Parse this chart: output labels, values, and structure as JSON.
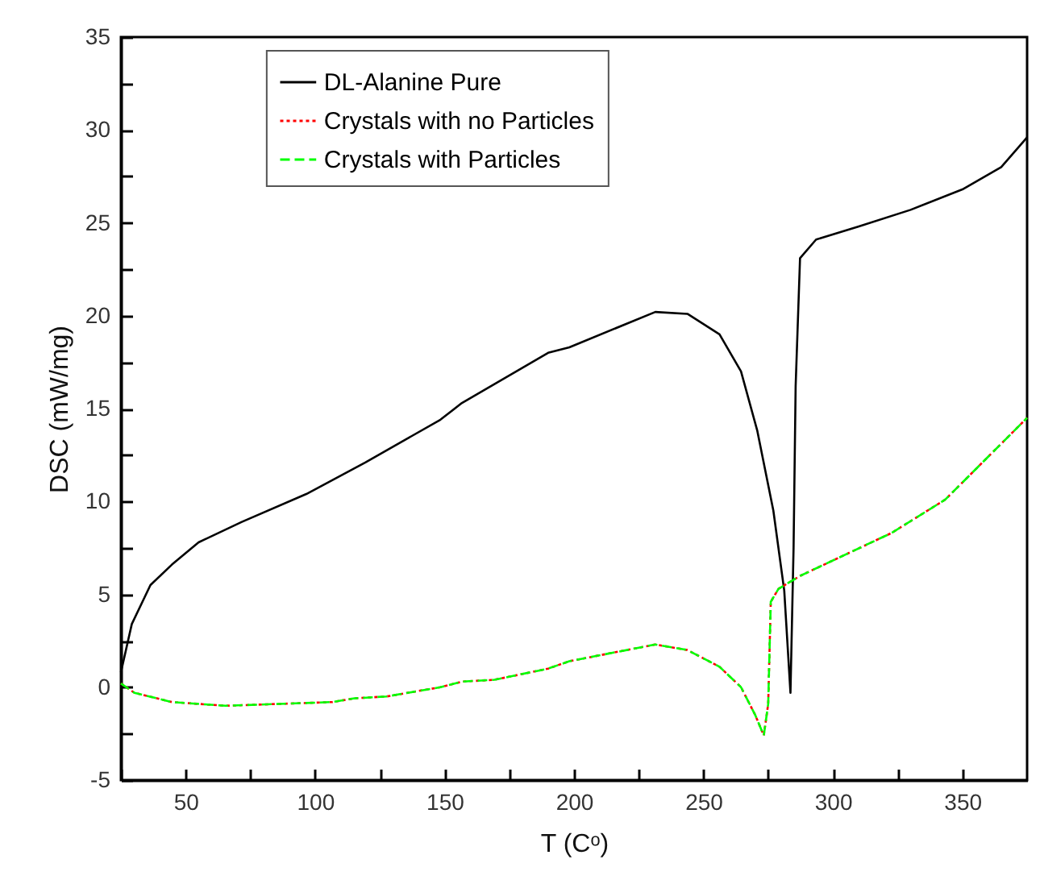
{
  "chart_data": {
    "type": "line",
    "xlabel": "T (Cᵒ)",
    "ylabel": "DSC (mW/mg)",
    "xlim": [
      25,
      375
    ],
    "ylim": [
      -5,
      35
    ],
    "xticks": [
      {
        "value": 25,
        "label": null
      },
      50,
      {
        "value": 75,
        "label": null
      },
      100,
      {
        "value": 125,
        "label": null
      },
      150,
      {
        "value": 175,
        "label": null
      },
      200,
      {
        "value": 225,
        "label": null
      },
      250,
      {
        "value": 275,
        "label": null
      },
      300,
      {
        "value": 325,
        "label": null
      },
      350
    ],
    "yticks": [
      -5,
      {
        "value": -2.5,
        "label": null
      },
      0,
      {
        "value": 2.5,
        "label": null
      },
      5,
      {
        "value": 7.5,
        "label": null
      },
      10,
      {
        "value": 12.5,
        "label": null
      },
      15,
      {
        "value": 17.5,
        "label": null
      },
      20,
      {
        "value": 22.5,
        "label": null
      },
      25,
      {
        "value": 27.5,
        "label": null
      },
      30,
      {
        "value": 32.5,
        "label": null
      },
      35
    ],
    "grid": false,
    "legend": "top",
    "series": [
      {
        "name": "DL-Alanine Pure",
        "color": "#000000",
        "line_style": "solid",
        "x": [
          25,
          29.2,
          36.4,
          44.7,
          55,
          71.7,
          96.6,
          119.4,
          148.4,
          156.7,
          190,
          198.2,
          231.4,
          243.8,
          256.2,
          264.5,
          270.8,
          277,
          281.2,
          283.6,
          284.8,
          285.6,
          287.3,
          293.5,
          310,
          330,
          350,
          365,
          375
        ],
        "values": [
          0.8,
          3.4,
          5.5,
          6.6,
          7.8,
          8.9,
          10.4,
          12.1,
          14.4,
          15.3,
          18.0,
          18.3,
          20.2,
          20.1,
          19.0,
          17.0,
          13.8,
          9.5,
          5.2,
          -0.3,
          7.5,
          16.2,
          23.1,
          24.1,
          24.8,
          25.7,
          26.8,
          28.0,
          29.6
        ]
      },
      {
        "name": "Crystals with no Particles",
        "color": "#ff0000",
        "line_style": "dotted",
        "x": [
          25,
          30.2,
          44.7,
          65.4,
          86,
          106.7,
          115.2,
          127.6,
          148.4,
          156.7,
          169.3,
          190,
          198.2,
          231.4,
          243.8,
          256.2,
          264.5,
          270,
          273.3,
          275,
          276,
          279,
          287.4,
          322.6,
          343.4,
          375
        ],
        "values": [
          0.2,
          -0.3,
          -0.8,
          -1.0,
          -0.9,
          -0.8,
          -0.6,
          -0.5,
          0.0,
          0.3,
          0.4,
          1.0,
          1.4,
          2.3,
          2.0,
          1.1,
          0.0,
          -1.5,
          -2.6,
          -0.9,
          4.6,
          5.3,
          6.0,
          8.3,
          10.1,
          14.5
        ]
      },
      {
        "name": "Crystals with Particles",
        "color": "#00ff00",
        "line_style": "dashed",
        "x": [
          25,
          30.2,
          44.7,
          65.4,
          86,
          106.7,
          115.2,
          127.6,
          148.4,
          156.7,
          169.3,
          190,
          198.2,
          231.4,
          243.8,
          256.2,
          264.5,
          270,
          273.3,
          275,
          276,
          279,
          287.4,
          322.6,
          343.4,
          375
        ],
        "values": [
          0.2,
          -0.3,
          -0.8,
          -1.0,
          -0.9,
          -0.8,
          -0.6,
          -0.5,
          0.0,
          0.3,
          0.4,
          1.0,
          1.4,
          2.3,
          2.0,
          1.1,
          0.0,
          -1.5,
          -2.6,
          -0.9,
          4.6,
          5.3,
          6.0,
          8.3,
          10.1,
          14.5
        ]
      }
    ]
  }
}
